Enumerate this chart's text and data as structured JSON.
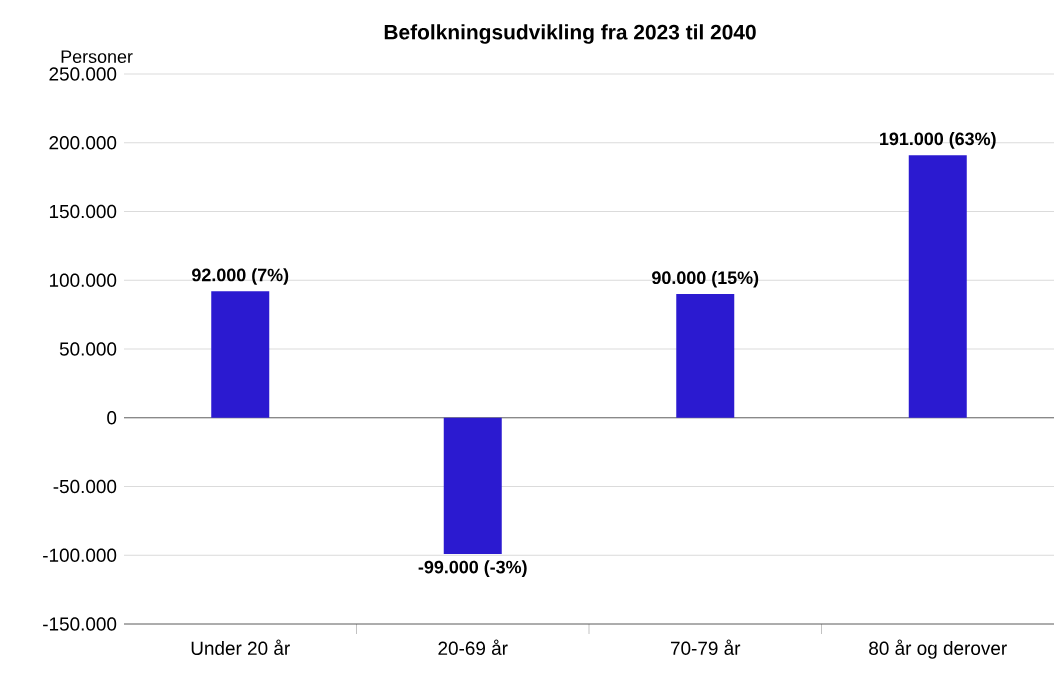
{
  "chart_data": {
    "type": "bar",
    "title": "Befolkningsudvikling fra 2023 til 2040",
    "ylabel": "Personer",
    "categories": [
      "Under 20 år",
      "20-69 år",
      "70-79 år",
      "80 år og derover"
    ],
    "values": [
      92000,
      -99000,
      90000,
      191000
    ],
    "value_labels": [
      "92.000 (7%)",
      "-99.000 (-3%)",
      "90.000 (15%)",
      "191.000 (63%)"
    ],
    "color": "#2b1ad0",
    "ylim": [
      -150000,
      250000
    ],
    "yticks": [
      {
        "value": -150000,
        "label": "-150.000"
      },
      {
        "value": -100000,
        "label": "-100.000"
      },
      {
        "value": -50000,
        "label": "-50.000"
      },
      {
        "value": 0,
        "label": "0"
      },
      {
        "value": 50000,
        "label": "50.000"
      },
      {
        "value": 100000,
        "label": "100.000"
      },
      {
        "value": 150000,
        "label": "150.000"
      },
      {
        "value": 200000,
        "label": "200.000"
      },
      {
        "value": 250000,
        "label": "250.000"
      }
    ],
    "grid": "y"
  }
}
